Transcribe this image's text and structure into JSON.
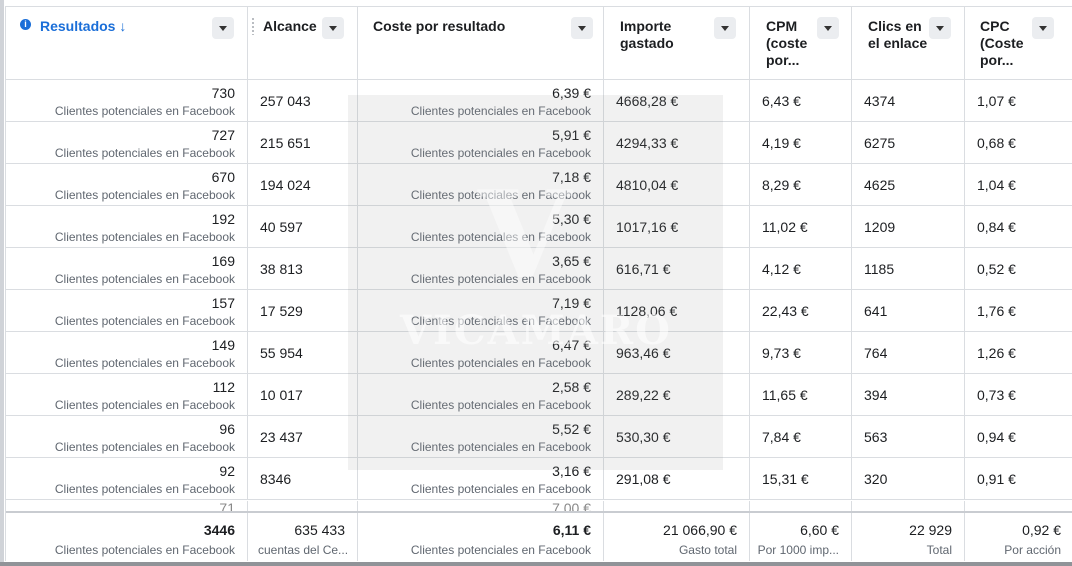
{
  "columns": [
    {
      "label": "Resultados",
      "sort_arrow": "↓"
    },
    {
      "label": "Alcance"
    },
    {
      "label": "Coste por resultado"
    },
    {
      "label": "Importe gastado",
      "lines": [
        "Importe",
        "gastado"
      ]
    },
    {
      "label": "CPM (coste por...",
      "lines": [
        "CPM",
        "(coste",
        "por..."
      ]
    },
    {
      "label": "Clics en el enlace",
      "lines": [
        "Clics en",
        "el enlace"
      ]
    },
    {
      "label": "CPC (Coste por...",
      "lines": [
        "CPC",
        "(Coste",
        "por..."
      ]
    }
  ],
  "result_type": "Clientes potenciales en Facebook",
  "rows": [
    {
      "resultados": "730",
      "alcance": "257 043",
      "coste": "6,39 €",
      "importe": "4668,28 €",
      "cpm": "6,43 €",
      "clics": "4374",
      "cpc": "1,07 €"
    },
    {
      "resultados": "727",
      "alcance": "215 651",
      "coste": "5,91 €",
      "importe": "4294,33 €",
      "cpm": "4,19 €",
      "clics": "6275",
      "cpc": "0,68 €"
    },
    {
      "resultados": "670",
      "alcance": "194 024",
      "coste": "7,18 €",
      "importe": "4810,04 €",
      "cpm": "8,29 €",
      "clics": "4625",
      "cpc": "1,04 €"
    },
    {
      "resultados": "192",
      "alcance": "40 597",
      "coste": "5,30 €",
      "importe": "1017,16 €",
      "cpm": "11,02 €",
      "clics": "1209",
      "cpc": "0,84 €"
    },
    {
      "resultados": "169",
      "alcance": "38 813",
      "coste": "3,65 €",
      "importe": "616,71 €",
      "cpm": "4,12 €",
      "clics": "1185",
      "cpc": "0,52 €"
    },
    {
      "resultados": "157",
      "alcance": "17 529",
      "coste": "7,19 €",
      "importe": "1128,06 €",
      "cpm": "22,43 €",
      "clics": "641",
      "cpc": "1,76 €"
    },
    {
      "resultados": "149",
      "alcance": "55 954",
      "coste": "6,47 €",
      "importe": "963,46 €",
      "cpm": "9,73 €",
      "clics": "764",
      "cpc": "1,26 €"
    },
    {
      "resultados": "112",
      "alcance": "10 017",
      "coste": "2,58 €",
      "importe": "289,22 €",
      "cpm": "11,65 €",
      "clics": "394",
      "cpc": "0,73 €"
    },
    {
      "resultados": "96",
      "alcance": "23 437",
      "coste": "5,52 €",
      "importe": "530,30 €",
      "cpm": "7,84 €",
      "clics": "563",
      "cpc": "0,94 €"
    },
    {
      "resultados": "92",
      "alcance": "8346",
      "coste": "3,16 €",
      "importe": "291,08 €",
      "cpm": "15,31 €",
      "clics": "320",
      "cpc": "0,91 €"
    }
  ],
  "partial_row": {
    "resultados": "71",
    "coste": "7,00 €"
  },
  "totals": {
    "resultados": "3446",
    "resultados_sub": "Clientes potenciales en Facebook",
    "alcance": "635 433",
    "alcance_sub": "cuentas del Ce...",
    "coste": "6,11 €",
    "coste_sub": "Clientes potenciales en Facebook",
    "importe": "21 066,90 €",
    "importe_sub": "Gasto total",
    "cpm": "6,60 €",
    "cpm_sub": "Por 1000 imp...",
    "clics": "22 929",
    "clics_sub": "Total",
    "cpc": "0,92 €",
    "cpc_sub": "Por acción"
  },
  "watermark": "VICAMARO",
  "colors": {
    "accent": "#1a6ed8",
    "border": "#dadde1",
    "muted": "#606770"
  }
}
